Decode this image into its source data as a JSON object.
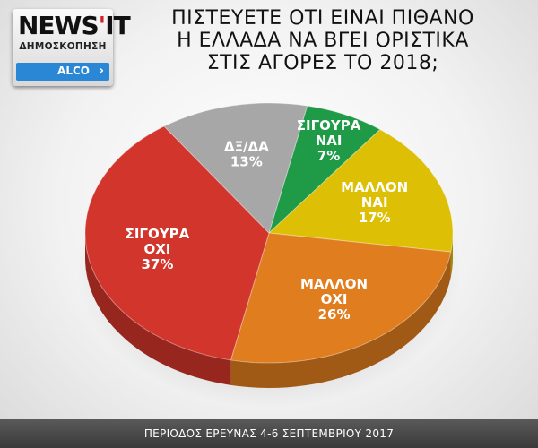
{
  "logo": {
    "brand_main": "NEWS",
    "brand_apostrophe": "'",
    "brand_end": "IT",
    "subtitle": "ΔΗΜΟΣΚΟΠΗΣΗ",
    "partner": "ALCO",
    "chevron": "›"
  },
  "title": {
    "line1": "ΠΙΣΤΕΥΕΤΕ ΟΤΙ ΕΙΝΑΙ ΠΙΘΑΝΟ",
    "line2": "Η ΕΛΛΑΔΑ ΝΑ ΒΓΕΙ ΟΡΙΣΤΙΚΑ",
    "line3": "ΣΤΙΣ ΑΓΟΡΕΣ ΤΟ 2018;"
  },
  "footer": "ΠΕΡΙΟΔΟΣ ΕΡΕΥΝΑΣ 4-6 ΣΕΠΤΕΜΒΡΙΟΥ 2017",
  "chart_data": {
    "type": "pie",
    "title": "ΠΙΣΤΕΥΕΤΕ ΟΤΙ ΕΙΝΑΙ ΠΙΘΑΝΟ Η ΕΛΛΑΔΑ ΝΑ ΒΓΕΙ ΟΡΙΣΤΙΚΑ ΣΤΙΣ ΑΓΟΡΕΣ ΤΟ 2018;",
    "slices": [
      {
        "label_lines": [
          "ΣΙΓΟΥΡΑ",
          "ΝΑΙ"
        ],
        "value": 7,
        "value_label": "7%",
        "color": "#1f9a47"
      },
      {
        "label_lines": [
          "ΜΑΛΛΟΝ",
          "ΝΑΙ"
        ],
        "value": 17,
        "value_label": "17%",
        "color": "#ddbf05"
      },
      {
        "label_lines": [
          "ΜΑΛΛΟΝ",
          "ΟΧΙ"
        ],
        "value": 26,
        "value_label": "26%",
        "color": "#e07d1e"
      },
      {
        "label_lines": [
          "ΣΙΓΟΥΡΑ",
          "ΟΧΙ"
        ],
        "value": 37,
        "value_label": "37%",
        "color": "#d2352b"
      },
      {
        "label_lines": [
          "ΔΞ/ΔΑ"
        ],
        "value": 13,
        "value_label": "13%",
        "color": "#a7a7a7"
      }
    ]
  }
}
